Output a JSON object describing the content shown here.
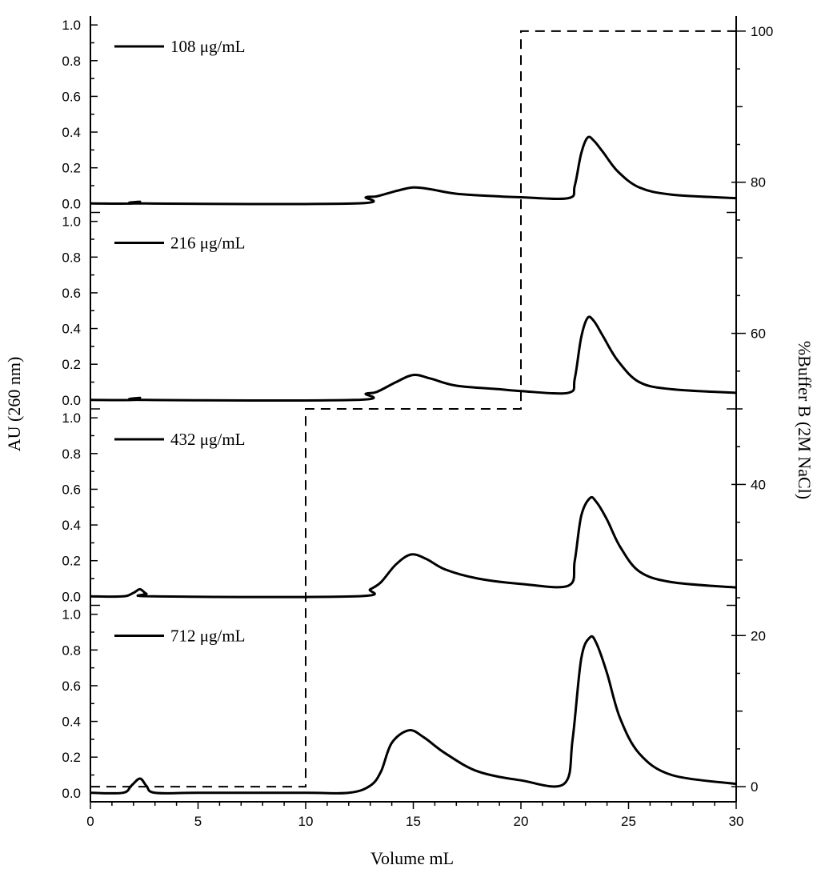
{
  "chart_data": {
    "type": "line",
    "title": "",
    "xlabel": "Volume mL",
    "ylabel_left": "AU (260 nm)",
    "ylabel_right": "%Buffer B (2M NaCl)",
    "xlim": [
      0,
      30
    ],
    "x_ticks": [
      0,
      5,
      10,
      15,
      20,
      25,
      30
    ],
    "x_tick_labels": [
      "0",
      "5",
      "10",
      "15",
      "20",
      "25",
      "30"
    ],
    "panel_ylim": [
      -0.05,
      1.05
    ],
    "left_tick_values": [
      0.0,
      0.2,
      0.4,
      0.6,
      0.8,
      1.0
    ],
    "left_tick_labels": [
      "0.0",
      "0.2",
      "0.4",
      "0.6",
      "0.8",
      "1.0"
    ],
    "right_ylim": [
      -2,
      102
    ],
    "right_ticks": [
      0,
      20,
      40,
      60,
      80,
      100
    ],
    "right_tick_labels": [
      "0",
      "20",
      "40",
      "60",
      "80",
      "100"
    ],
    "grid": false,
    "legend_position": "top-left of each panel",
    "series": [
      {
        "name": "108 μg/mL",
        "x": [
          0,
          2,
          2.3,
          2.6,
          12.3,
          12.8,
          13.3,
          14.2,
          15.0,
          15.8,
          17,
          19,
          20,
          22.2,
          22.5,
          22.8,
          23.1,
          23.4,
          23.8,
          24.5,
          25.5,
          27,
          30
        ],
        "y": [
          0.0,
          0.0,
          0.01,
          0.0,
          0.0,
          0.035,
          0.04,
          0.07,
          0.09,
          0.08,
          0.055,
          0.04,
          0.035,
          0.03,
          0.1,
          0.28,
          0.37,
          0.35,
          0.29,
          0.18,
          0.09,
          0.05,
          0.03
        ]
      },
      {
        "name": "216 μg/mL",
        "x": [
          0,
          2,
          2.3,
          2.6,
          12.3,
          12.8,
          13.3,
          14.2,
          15.0,
          15.8,
          17,
          19,
          20,
          22.2,
          22.5,
          22.8,
          23.1,
          23.4,
          23.8,
          24.5,
          25.5,
          27,
          30
        ],
        "y": [
          0.0,
          0.0,
          0.012,
          0.0,
          0.0,
          0.035,
          0.045,
          0.1,
          0.14,
          0.12,
          0.08,
          0.06,
          0.05,
          0.04,
          0.12,
          0.35,
          0.46,
          0.44,
          0.36,
          0.22,
          0.1,
          0.06,
          0.04
        ]
      },
      {
        "name": "432 μg/mL",
        "x": [
          0,
          1.5,
          2.0,
          2.3,
          2.6,
          3.0,
          12.3,
          13.0,
          13.5,
          14.2,
          14.9,
          15.6,
          16.5,
          18,
          20,
          22.2,
          22.5,
          22.8,
          23.2,
          23.5,
          24.0,
          24.6,
          25.5,
          27,
          30
        ],
        "y": [
          0.0,
          0.0,
          0.02,
          0.04,
          0.015,
          0.0,
          0.0,
          0.04,
          0.08,
          0.18,
          0.235,
          0.21,
          0.15,
          0.1,
          0.07,
          0.06,
          0.2,
          0.45,
          0.55,
          0.53,
          0.43,
          0.28,
          0.14,
          0.08,
          0.05
        ]
      },
      {
        "name": "712 μg/mL",
        "x": [
          0,
          1.5,
          1.9,
          2.3,
          2.6,
          3.0,
          5,
          10,
          12,
          13.0,
          13.5,
          14.0,
          14.8,
          15.5,
          16.5,
          18,
          20,
          22.0,
          22.4,
          22.8,
          23.2,
          23.5,
          24.0,
          24.6,
          25.5,
          27,
          30
        ],
        "y": [
          0.0,
          0.0,
          0.04,
          0.08,
          0.04,
          0.0,
          0.0,
          0.0,
          0.0,
          0.04,
          0.12,
          0.28,
          0.35,
          0.31,
          0.22,
          0.12,
          0.07,
          0.05,
          0.3,
          0.75,
          0.87,
          0.84,
          0.67,
          0.42,
          0.22,
          0.1,
          0.05
        ]
      },
      {
        "name": "%Buffer B (2M NaCl)",
        "axis": "right",
        "x": [
          0,
          10,
          10,
          20,
          20,
          30
        ],
        "y": [
          0,
          0,
          50,
          50,
          100,
          100
        ]
      }
    ]
  }
}
